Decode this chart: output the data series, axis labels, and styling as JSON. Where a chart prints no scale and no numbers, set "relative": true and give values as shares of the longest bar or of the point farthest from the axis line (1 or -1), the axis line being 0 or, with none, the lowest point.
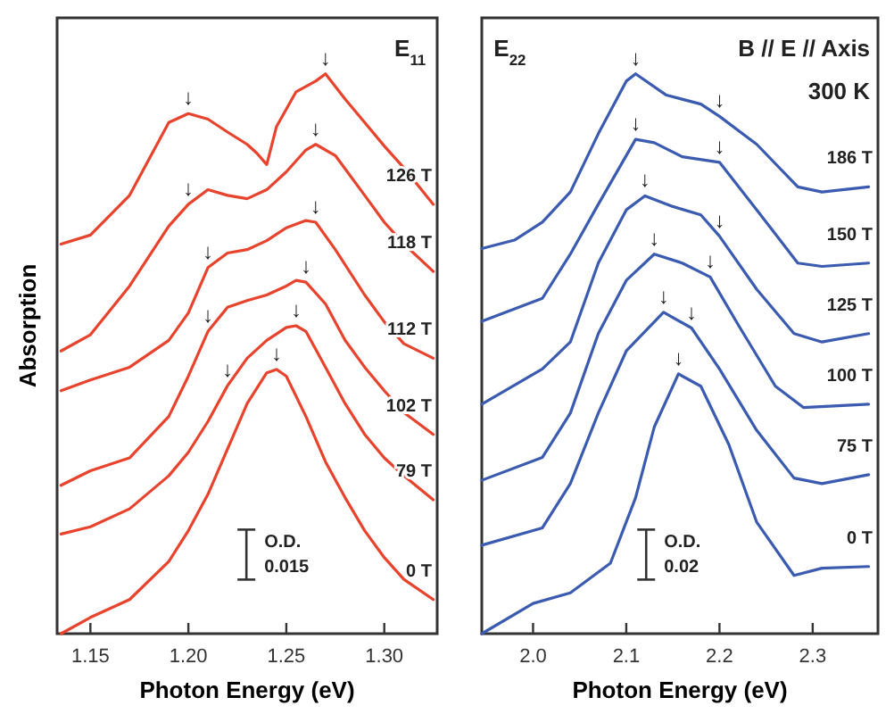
{
  "chart_data": [
    {
      "type": "line",
      "relative": true,
      "xlabel": "Photon Energy (eV)",
      "ylabel": "Absorption",
      "xlim": [
        1.133,
        1.327
      ],
      "xticks": [
        1.15,
        {
          "value": 1.2,
          "label": "1.20"
        },
        1.25,
        {
          "value": 1.3,
          "label": "1.30"
        }
      ],
      "series": [
        {
          "name": "126 T",
          "color": "#e8432d",
          "x": [
            1.135,
            1.15,
            1.17,
            1.19,
            1.2,
            1.21,
            1.22,
            1.23,
            1.235,
            1.24,
            1.245,
            1.255,
            1.265,
            1.27,
            1.28,
            1.29,
            1.3,
            1.31,
            1.325
          ],
          "values": [
            0.696,
            0.712,
            0.783,
            0.913,
            0.929,
            0.919,
            0.896,
            0.874,
            0.858,
            0.838,
            0.906,
            0.968,
            0.987,
            1.0,
            0.955,
            0.913,
            0.871,
            0.832,
            0.767
          ]
        },
        {
          "name": "118 T",
          "color": "#e8432d",
          "x": [
            1.135,
            1.15,
            1.17,
            1.19,
            1.2,
            1.21,
            1.22,
            1.23,
            1.24,
            1.25,
            1.26,
            1.265,
            1.275,
            1.29,
            1.3,
            1.31,
            1.325
          ],
          "values": [
            0.505,
            0.534,
            0.621,
            0.728,
            0.767,
            0.793,
            0.783,
            0.777,
            0.793,
            0.825,
            0.864,
            0.874,
            0.854,
            0.783,
            0.735,
            0.696,
            0.647
          ]
        },
        {
          "name": "112 T",
          "color": "#e8432d",
          "x": [
            1.135,
            1.15,
            1.17,
            1.19,
            1.2,
            1.21,
            1.22,
            1.23,
            1.24,
            1.25,
            1.26,
            1.265,
            1.275,
            1.29,
            1.3,
            1.31,
            1.325
          ],
          "values": [
            0.434,
            0.453,
            0.476,
            0.524,
            0.573,
            0.654,
            0.68,
            0.686,
            0.702,
            0.725,
            0.738,
            0.735,
            0.686,
            0.605,
            0.557,
            0.518,
            0.492
          ]
        },
        {
          "name": "102 T",
          "color": "#e8432d",
          "x": [
            1.135,
            1.15,
            1.17,
            1.19,
            1.2,
            1.21,
            1.22,
            1.23,
            1.24,
            1.25,
            1.255,
            1.26,
            1.27,
            1.28,
            1.29,
            1.3,
            1.31,
            1.325
          ],
          "values": [
            0.265,
            0.291,
            0.314,
            0.388,
            0.46,
            0.54,
            0.583,
            0.595,
            0.605,
            0.621,
            0.631,
            0.628,
            0.589,
            0.524,
            0.476,
            0.434,
            0.395,
            0.356
          ]
        },
        {
          "name": "79 T",
          "color": "#e8432d",
          "x": [
            1.135,
            1.15,
            1.17,
            1.19,
            1.2,
            1.21,
            1.22,
            1.23,
            1.24,
            1.25,
            1.255,
            1.26,
            1.27,
            1.28,
            1.29,
            1.3,
            1.31,
            1.325
          ],
          "values": [
            0.178,
            0.191,
            0.223,
            0.282,
            0.324,
            0.379,
            0.443,
            0.492,
            0.524,
            0.547,
            0.55,
            0.54,
            0.476,
            0.411,
            0.356,
            0.314,
            0.282,
            0.239
          ]
        },
        {
          "name": "0 T",
          "color": "#e8432d",
          "x": [
            1.135,
            1.15,
            1.17,
            1.19,
            1.2,
            1.21,
            1.22,
            1.23,
            1.24,
            1.245,
            1.25,
            1.26,
            1.27,
            1.28,
            1.29,
            1.3,
            1.31,
            1.325
          ],
          "values": [
            0,
            0.029,
            0.061,
            0.129,
            0.184,
            0.249,
            0.33,
            0.411,
            0.466,
            0.472,
            0.46,
            0.388,
            0.307,
            0.243,
            0.184,
            0.136,
            0.097,
            0.061
          ]
        }
      ],
      "annotations": [
        "E$_{11}$",
        "O.D.\n0.015",
        {
          "text": "↓",
          "x": 1.2,
          "y": 0.929
        },
        {
          "text": "↓",
          "x": 1.27,
          "y": 1.0
        },
        {
          "text": "↓",
          "x": 1.2,
          "y": 0.767
        },
        {
          "text": "↓",
          "x": 1.265,
          "y": 0.874
        },
        {
          "text": "↓",
          "x": 1.21,
          "y": 0.654
        },
        {
          "text": "↓",
          "x": 1.265,
          "y": 0.735
        },
        {
          "text": "↓",
          "x": 1.21,
          "y": 0.54
        },
        {
          "text": "↓",
          "x": 1.26,
          "y": 0.628
        },
        {
          "text": "↓",
          "x": 1.22,
          "y": 0.443
        },
        {
          "text": "↓",
          "x": 1.255,
          "y": 0.55
        },
        {
          "text": "↓",
          "x": 1.245,
          "y": 0.472
        }
      ]
    },
    {
      "type": "line",
      "relative": true,
      "xlabel": "Photon Energy (eV)",
      "xlim": [
        1.945,
        2.37
      ],
      "xticks": [
        {
          "value": 2,
          "label": "2.0"
        },
        2.1,
        2.2,
        2.3
      ],
      "series": [
        {
          "name": "186 T",
          "color": "#3a5bb0",
          "x": [
            1.945,
            1.98,
            2.01,
            2.04,
            2.07,
            2.1,
            2.11,
            2.143,
            2.18,
            2.2,
            2.24,
            2.284,
            2.31,
            2.36
          ],
          "values": [
            0.688,
            0.703,
            0.735,
            0.789,
            0.893,
            0.987,
            1.0,
            0.962,
            0.946,
            0.924,
            0.874,
            0.798,
            0.789,
            0.798
          ]
        },
        {
          "name": "150 T",
          "color": "#3a5bb0",
          "x": [
            1.945,
            2.01,
            2.04,
            2.07,
            2.11,
            2.13,
            2.16,
            2.2,
            2.24,
            2.284,
            2.31,
            2.36
          ],
          "values": [
            0.558,
            0.599,
            0.678,
            0.767,
            0.883,
            0.877,
            0.852,
            0.842,
            0.757,
            0.662,
            0.656,
            0.662
          ]
        },
        {
          "name": "125 T",
          "color": "#3a5bb0",
          "x": [
            1.945,
            2.01,
            2.04,
            2.07,
            2.1,
            2.12,
            2.15,
            2.18,
            2.2,
            2.24,
            2.28,
            2.31,
            2.36
          ],
          "values": [
            0.41,
            0.473,
            0.521,
            0.662,
            0.757,
            0.782,
            0.763,
            0.748,
            0.71,
            0.615,
            0.536,
            0.521,
            0.536
          ]
        },
        {
          "name": "100 T",
          "color": "#3a5bb0",
          "x": [
            1.945,
            2.01,
            2.04,
            2.07,
            2.1,
            2.13,
            2.16,
            2.19,
            2.22,
            2.26,
            2.29,
            2.36
          ],
          "values": [
            0.274,
            0.315,
            0.394,
            0.536,
            0.631,
            0.678,
            0.662,
            0.637,
            0.552,
            0.442,
            0.404,
            0.41
          ]
        },
        {
          "name": "75 T",
          "color": "#3a5bb0",
          "x": [
            1.945,
            2.01,
            2.04,
            2.07,
            2.1,
            2.14,
            2.17,
            2.2,
            2.24,
            2.28,
            2.31,
            2.36
          ],
          "values": [
            0.158,
            0.189,
            0.268,
            0.394,
            0.505,
            0.574,
            0.546,
            0.473,
            0.363,
            0.278,
            0.268,
            0.284
          ]
        },
        {
          "name": "0 T",
          "color": "#3a5bb0",
          "x": [
            1.945,
            2.0,
            2.04,
            2.083,
            2.11,
            2.13,
            2.156,
            2.18,
            2.21,
            2.24,
            2.28,
            2.31,
            2.36
          ],
          "values": [
            0,
            0.054,
            0.073,
            0.126,
            0.243,
            0.369,
            0.464,
            0.442,
            0.338,
            0.199,
            0.104,
            0.117,
            0.12
          ]
        }
      ],
      "annotations": [
        "E$_{22}$",
        "B // E // Axis",
        "300 K",
        "O.D.\n0.02",
        {
          "text": "↓",
          "x": 2.11,
          "y": 1.0
        },
        {
          "text": "↓",
          "x": 2.2,
          "y": 0.924
        },
        {
          "text": "↓",
          "x": 2.11,
          "y": 0.883
        },
        {
          "text": "↓",
          "x": 2.2,
          "y": 0.842
        },
        {
          "text": "↓",
          "x": 2.12,
          "y": 0.782
        },
        {
          "text": "↓",
          "x": 2.2,
          "y": 0.71
        },
        {
          "text": "↓",
          "x": 2.13,
          "y": 0.678
        },
        {
          "text": "↓",
          "x": 2.19,
          "y": 0.637
        },
        {
          "text": "↓",
          "x": 2.14,
          "y": 0.574
        },
        {
          "text": "↓",
          "x": 2.17,
          "y": 0.546
        },
        {
          "text": "↓",
          "x": 2.156,
          "y": 0.464
        }
      ]
    }
  ]
}
